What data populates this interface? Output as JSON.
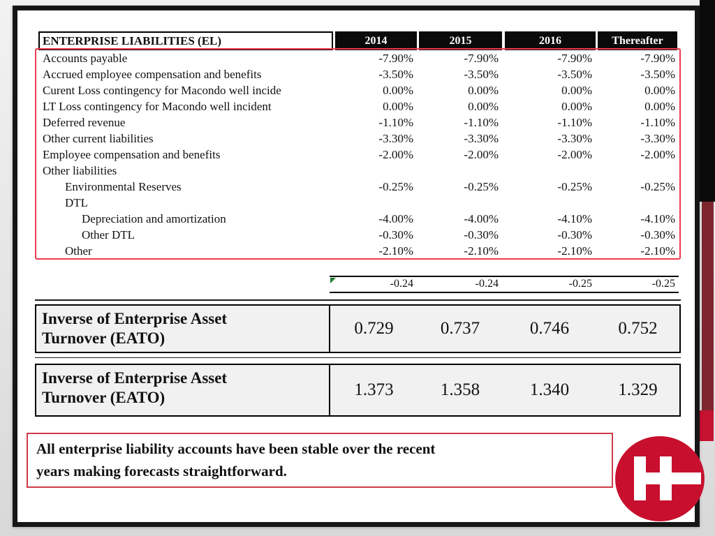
{
  "slide": {
    "table": {
      "title": "ENTERPRISE LIABILITIES (EL)",
      "columns": [
        "2014",
        "2015",
        "2016",
        "Thereafter"
      ],
      "rows": [
        {
          "label": "Accounts payable",
          "indent": 0,
          "values": [
            "-7.90%",
            "-7.90%",
            "-7.90%",
            "-7.90%"
          ]
        },
        {
          "label": "Accrued employee compensation and benefits",
          "indent": 0,
          "values": [
            "-3.50%",
            "-3.50%",
            "-3.50%",
            "-3.50%"
          ]
        },
        {
          "label": "Curent Loss contingency for Macondo well incide",
          "indent": 0,
          "values": [
            "0.00%",
            "0.00%",
            "0.00%",
            "0.00%"
          ]
        },
        {
          "label": "LT Loss contingency for Macondo well incident",
          "indent": 0,
          "values": [
            "0.00%",
            "0.00%",
            "0.00%",
            "0.00%"
          ]
        },
        {
          "label": "Deferred revenue",
          "indent": 0,
          "values": [
            "-1.10%",
            "-1.10%",
            "-1.10%",
            "-1.10%"
          ]
        },
        {
          "label": "Other current liabilities",
          "indent": 0,
          "values": [
            "-3.30%",
            "-3.30%",
            "-3.30%",
            "-3.30%"
          ]
        },
        {
          "label": "Employee compensation and benefits",
          "indent": 0,
          "values": [
            "-2.00%",
            "-2.00%",
            "-2.00%",
            "-2.00%"
          ]
        },
        {
          "label": "Other liabilities",
          "indent": 0,
          "values": [
            "",
            "",
            "",
            ""
          ]
        },
        {
          "label": "Environmental Reserves",
          "indent": 1,
          "values": [
            "-0.25%",
            "-0.25%",
            "-0.25%",
            "-0.25%"
          ]
        },
        {
          "label": "DTL",
          "indent": 1,
          "values": [
            "",
            "",
            "",
            ""
          ]
        },
        {
          "label": "Depreciation and amortization",
          "indent": 2,
          "values": [
            "-4.00%",
            "-4.00%",
            "-4.10%",
            "-4.10%"
          ]
        },
        {
          "label": "Other DTL",
          "indent": 2,
          "values": [
            "-0.30%",
            "-0.30%",
            "-0.30%",
            "-0.30%"
          ]
        },
        {
          "label": "Other",
          "indent": 1,
          "values": [
            "-2.10%",
            "-2.10%",
            "-2.10%",
            "-2.10%"
          ]
        }
      ],
      "total_row": {
        "values": [
          "-0.24",
          "-0.24",
          "-0.25",
          "-0.25"
        ]
      }
    },
    "eato_blocks": [
      {
        "label": "Inverse of Enterprise Asset Turnover (EATO)",
        "values": [
          "0.729",
          "0.737",
          "0.746",
          "0.752"
        ]
      },
      {
        "label": "Inverse of Enterprise Asset Turnover (EATO)",
        "values": [
          "1.373",
          "1.358",
          "1.340",
          "1.329"
        ]
      }
    ],
    "note": {
      "lines": [
        "All enterprise liability accounts have been stable over the recent",
        "years making forecasts straightforward."
      ]
    }
  },
  "logo": {
    "letter": "H",
    "icon": "halliburton-h-logo",
    "color": "#c8102e"
  },
  "colors": {
    "outline_red": "#ee3a4e",
    "note_border_red": "#cf3a48",
    "accent_maroon": "#7d262e",
    "accent_red": "#c41230",
    "header_black": "#0a0a0a",
    "marker_green": "#1f7a2e"
  }
}
